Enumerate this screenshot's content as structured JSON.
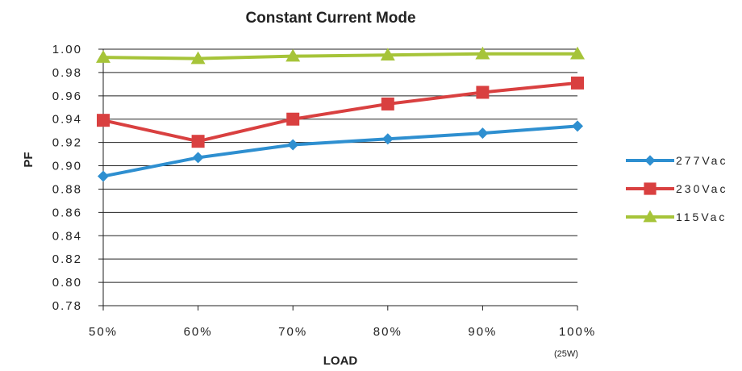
{
  "chart_data": {
    "type": "line",
    "title": "Constant Current Mode",
    "xlabel": "LOAD",
    "ylabel": "PF",
    "x_note": "(25W)",
    "categories": [
      "50%",
      "60%",
      "70%",
      "80%",
      "90%",
      "100%"
    ],
    "ylim": [
      0.78,
      1.0
    ],
    "yticks": [
      "0.78",
      "0.80",
      "0.82",
      "0.84",
      "0.86",
      "0.88",
      "0.90",
      "0.92",
      "0.94",
      "0.96",
      "0.98",
      "1.00"
    ],
    "grid": true,
    "legend_position": "right",
    "series": [
      {
        "name": "277Vac",
        "color": "#2e8fd0",
        "marker": "diamond",
        "values": [
          0.891,
          0.907,
          0.918,
          0.923,
          0.928,
          0.934
        ]
      },
      {
        "name": "230Vac",
        "color": "#d94040",
        "marker": "square",
        "values": [
          0.939,
          0.921,
          0.94,
          0.953,
          0.963,
          0.971
        ]
      },
      {
        "name": "115Vac",
        "color": "#a6c439",
        "marker": "triangle",
        "values": [
          0.993,
          0.992,
          0.994,
          0.995,
          0.996,
          0.996
        ]
      }
    ]
  }
}
